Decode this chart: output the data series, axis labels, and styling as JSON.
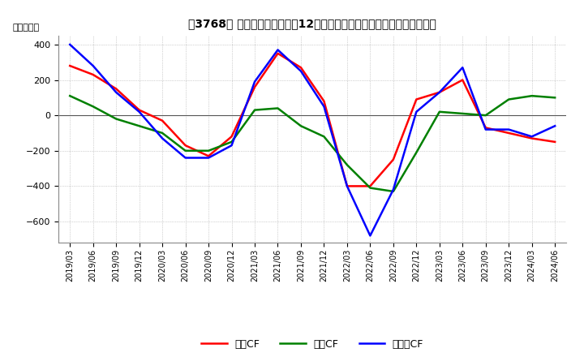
{
  "title": "【3768】 キャッシュフローの12か月移動合計の対前年同期増減額の推移",
  "ylabel": "（百万円）",
  "ylim": [
    -720,
    450
  ],
  "yticks": [
    -600,
    -400,
    -200,
    0,
    200,
    400
  ],
  "dates": [
    "2019/03",
    "2019/06",
    "2019/09",
    "2019/12",
    "2020/03",
    "2020/06",
    "2020/09",
    "2020/12",
    "2021/03",
    "2021/06",
    "2021/09",
    "2021/12",
    "2022/03",
    "2022/06",
    "2022/09",
    "2022/12",
    "2023/03",
    "2023/06",
    "2023/09",
    "2023/12",
    "2024/03",
    "2024/06"
  ],
  "operating_cf": [
    280,
    230,
    150,
    30,
    -30,
    -170,
    -230,
    -120,
    160,
    350,
    270,
    80,
    -400,
    -400,
    -250,
    90,
    130,
    200,
    -70,
    -100,
    -130,
    -150
  ],
  "investing_cf": [
    110,
    50,
    -20,
    -60,
    -100,
    -200,
    -200,
    -150,
    30,
    40,
    -60,
    -120,
    -280,
    -410,
    -430,
    -210,
    20,
    10,
    0,
    90,
    110,
    100
  ],
  "free_cf": [
    400,
    280,
    130,
    20,
    -130,
    -240,
    -240,
    -170,
    190,
    370,
    250,
    50,
    -400,
    -680,
    -420,
    20,
    130,
    270,
    -80,
    -80,
    -120,
    -60
  ],
  "colors": {
    "operating": "#ff0000",
    "investing": "#008000",
    "free": "#0000ff"
  },
  "legend_labels": [
    "営業CF",
    "投資CF",
    "フリーCF"
  ],
  "background_color": "#ffffff",
  "grid_color": "#aaaaaa"
}
